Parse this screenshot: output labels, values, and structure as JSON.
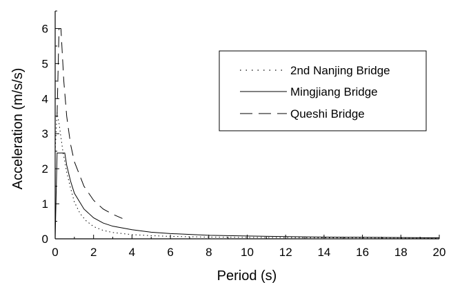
{
  "chart_data": {
    "type": "line",
    "title": "",
    "xlabel": "Period (s)",
    "ylabel": "Acceleration (m/s/s)",
    "xlim": [
      0,
      20
    ],
    "ylim": [
      0,
      6.5
    ],
    "xticks": [
      "0",
      "2",
      "4",
      "6",
      "8",
      "10",
      "12",
      "14",
      "16",
      "18",
      "20"
    ],
    "yticks": [
      "0",
      "1",
      "2",
      "3",
      "4",
      "5",
      "6"
    ],
    "grid": false,
    "legend_position": "top-right",
    "series": [
      {
        "name": "2nd Nanjing Bridge",
        "style": "dotted",
        "x": [
          0,
          0.1,
          0.2,
          0.4,
          0.6,
          0.8,
          1.0,
          1.3,
          1.6,
          2.0,
          2.5,
          3.0,
          4.0,
          5.0,
          6.0,
          8.0,
          10.0,
          14.0,
          20.0
        ],
        "y": [
          2.5,
          3.6,
          3.3,
          2.5,
          1.9,
          1.45,
          1.05,
          0.72,
          0.52,
          0.35,
          0.24,
          0.18,
          0.12,
          0.09,
          0.07,
          0.05,
          0.04,
          0.03,
          0.02
        ]
      },
      {
        "name": "Mingjiang Bridge",
        "style": "solid",
        "x": [
          0,
          0.1,
          0.5,
          0.6,
          0.8,
          1.0,
          1.5,
          2.0,
          2.5,
          3.0,
          4.0,
          5.0,
          6.0,
          8.0,
          10.0,
          14.0,
          20.0
        ],
        "y": [
          0,
          2.45,
          2.45,
          2.1,
          1.65,
          1.3,
          0.85,
          0.6,
          0.45,
          0.36,
          0.26,
          0.19,
          0.15,
          0.1,
          0.08,
          0.05,
          0.03
        ]
      },
      {
        "name": "Queshi Bridge",
        "style": "dashed",
        "x": [
          0.1,
          0.2,
          0.3,
          0.45,
          0.6,
          0.8,
          1.0,
          1.5,
          2.0,
          2.5,
          3.0,
          3.5
        ],
        "y": [
          3.5,
          6.0,
          6.0,
          4.5,
          3.5,
          2.7,
          2.2,
          1.5,
          1.1,
          0.85,
          0.7,
          0.58
        ]
      }
    ]
  }
}
